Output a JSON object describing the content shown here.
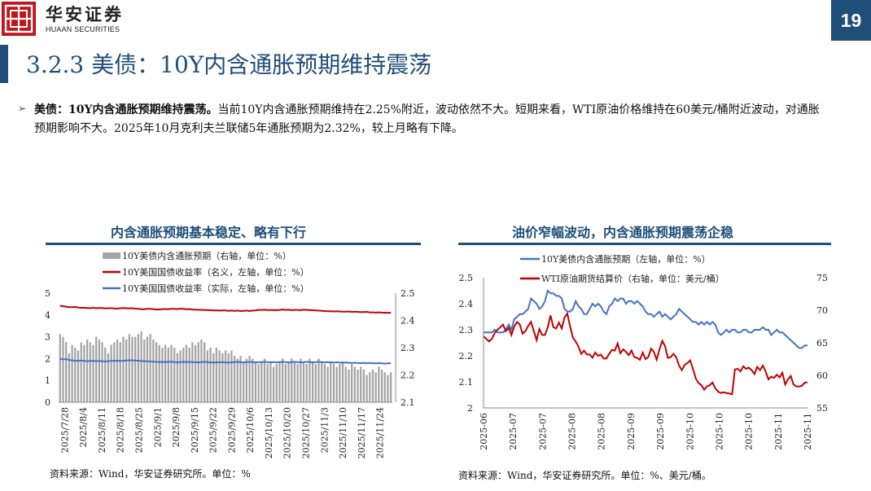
{
  "header": {
    "brand_cn": "华安证券",
    "brand_en": "HUAAN SECURITIES",
    "page_number": "19",
    "colors": {
      "brand_red": "#c0151c",
      "navy": "#1f4e79"
    }
  },
  "title": "3.2.3 美债：10Y内含通胀预期维持震荡",
  "bullet": {
    "lead": "美债：10Y内含通胀预期维持震荡。",
    "body": "当前10Y内含通胀预期维持在2.25%附近，波动依然不大。短期来看，WTI原油价格维持在60美元/桶附近波动，对通胀预期影响不大。2025年10月克利夫兰联储5年通胀预期为2.32%，较上月略有下降。"
  },
  "chart_data": [
    {
      "type": "bar",
      "title": "内含通胀预期基本稳定、略有下行",
      "source": "资料来源：Wind，华安证券研究所。单位：%",
      "legend": [
        {
          "name": "10Y美债内含通胀预期（右轴，单位：%）",
          "color": "#a6a6a6",
          "kind": "bar"
        },
        {
          "name": "10Y美国国债收益率（名义，左轴，单位：%）",
          "color": "#c00000",
          "kind": "line"
        },
        {
          "name": "10Y美国国债收益率（实际，左轴，单位：%）",
          "color": "#4472c4",
          "kind": "line"
        }
      ],
      "x_tick_labels": [
        "2025/7/28",
        "2025/8/4",
        "2025/8/11",
        "2025/8/18",
        "2025/8/25",
        "2025/9/1",
        "2025/9/8",
        "2025/9/15",
        "2025/9/22",
        "2025/9/29",
        "2025/10/6",
        "2025/10/13",
        "2025/10/20",
        "2025/10/27",
        "2025/11/3",
        "2025/11/10",
        "2025/11/17",
        "2025/11/24"
      ],
      "left_axis": {
        "ylim": [
          0,
          5
        ],
        "ticks": [
          "0",
          "1",
          "2",
          "3",
          "4",
          "5"
        ]
      },
      "right_axis": {
        "ylim": [
          2.1,
          2.5
        ],
        "ticks": [
          "2.1",
          "2.2",
          "2.3",
          "2.4",
          "2.5"
        ]
      },
      "series": [
        {
          "name": "10Y美债内含通胀预期（右轴，单位：%）",
          "axis": "right",
          "values": [
            2.35,
            2.34,
            2.32,
            2.28,
            2.31,
            2.3,
            2.29,
            2.32,
            2.31,
            2.33,
            2.32,
            2.31,
            2.34,
            2.33,
            2.32,
            2.3,
            2.28,
            2.31,
            2.32,
            2.33,
            2.32,
            2.34,
            2.33,
            2.35,
            2.34,
            2.34,
            2.35,
            2.36,
            2.33,
            2.34,
            2.35,
            2.33,
            2.32,
            2.31,
            2.3,
            2.31,
            2.3,
            2.31,
            2.3,
            2.28,
            2.29,
            2.3,
            2.31,
            2.3,
            2.32,
            2.31,
            2.32,
            2.33,
            2.32,
            2.29,
            2.3,
            2.28,
            2.3,
            2.29,
            2.28,
            2.29,
            2.28,
            2.29,
            2.27,
            2.26,
            2.27,
            2.25,
            2.26,
            2.27,
            2.26,
            2.25,
            2.24,
            2.25,
            2.26,
            2.24,
            2.25,
            2.23,
            2.24,
            2.25,
            2.26,
            2.24,
            2.25,
            2.26,
            2.25,
            2.24,
            2.26,
            2.25,
            2.24,
            2.26,
            2.25,
            2.24,
            2.26,
            2.25,
            2.24,
            2.23,
            2.25,
            2.24,
            2.23,
            2.24,
            2.25,
            2.23,
            2.22,
            2.24,
            2.23,
            2.22,
            2.23,
            2.22,
            2.2,
            2.21,
            2.22,
            2.21,
            2.23,
            2.22,
            2.21,
            2.2,
            2.21
          ]
        },
        {
          "name": "10Y美国国债收益率（名义，左轴，单位：%）",
          "axis": "left",
          "values": [
            4.42,
            4.4,
            4.38,
            4.36,
            4.36,
            4.37,
            4.34,
            4.33,
            4.33,
            4.32,
            4.31,
            4.33,
            4.31,
            4.32,
            4.32,
            4.3,
            4.31,
            4.31,
            4.3,
            4.29,
            4.31,
            4.32,
            4.31,
            4.3,
            4.31,
            4.29,
            4.28,
            4.26,
            4.26,
            4.28,
            4.28,
            4.27,
            4.25,
            4.25,
            4.27,
            4.27,
            4.26,
            4.28,
            4.28,
            4.27,
            4.29,
            4.28,
            4.26,
            4.27,
            4.25,
            4.24,
            4.24,
            4.23,
            4.23,
            4.22,
            4.22,
            4.21,
            4.21,
            4.2,
            4.21,
            4.21,
            4.19,
            4.2,
            4.19,
            4.2,
            4.18,
            4.19,
            4.2,
            4.18,
            4.2,
            4.21,
            4.23,
            4.23,
            4.24,
            4.22,
            4.23,
            4.22,
            4.22,
            4.23,
            4.25,
            4.23,
            4.24,
            4.22,
            4.23,
            4.23,
            4.22,
            4.24,
            4.23,
            4.22,
            4.22,
            4.21,
            4.2,
            4.19,
            4.18,
            4.17,
            4.17,
            4.16,
            4.17,
            4.16,
            4.15,
            4.15,
            4.16,
            4.14,
            4.15,
            4.14,
            4.13,
            4.13,
            4.14,
            4.12,
            4.12,
            4.11,
            4.12,
            4.11,
            4.1,
            4.1,
            4.1
          ]
        },
        {
          "name": "10Y美国国债收益率（实际，左轴，单位：%）",
          "axis": "left",
          "values": [
            2.0,
            1.96,
            1.98,
            1.94,
            1.92,
            1.9,
            1.9,
            1.91,
            1.89,
            1.88,
            1.89,
            1.9,
            1.88,
            1.89,
            1.88,
            1.87,
            1.88,
            1.89,
            1.9,
            1.9,
            1.89,
            1.9,
            1.91,
            1.92,
            1.92,
            1.91,
            1.9,
            1.89,
            1.88,
            1.88,
            1.87,
            1.86,
            1.85,
            1.84,
            1.85,
            1.84,
            1.85,
            1.86,
            1.84,
            1.83,
            1.84,
            1.85,
            1.84,
            1.85,
            1.84,
            1.83,
            1.83,
            1.84,
            1.85,
            1.84,
            1.83,
            1.82,
            1.83,
            1.83,
            1.84,
            1.83,
            1.82,
            1.83,
            1.84,
            1.85,
            1.84,
            1.83,
            1.84,
            1.85,
            1.84,
            1.83,
            1.84,
            1.84,
            1.85,
            1.84,
            1.83,
            1.84,
            1.83,
            1.84,
            1.85,
            1.84,
            1.83,
            1.84,
            1.85,
            1.84,
            1.83,
            1.84,
            1.85,
            1.84,
            1.83,
            1.84,
            1.85,
            1.84,
            1.83,
            1.84,
            1.83,
            1.82,
            1.83,
            1.82,
            1.81,
            1.82,
            1.81,
            1.8,
            1.81,
            1.8,
            1.79,
            1.8,
            1.79,
            1.8,
            1.79,
            1.78,
            1.79,
            1.78,
            1.77,
            1.78,
            1.79
          ]
        }
      ]
    },
    {
      "type": "line",
      "title": "油价窄幅波动，内含通胀预期震荡企稳",
      "source": "资料来源：Wind，华安证券研究所。单位：%、美元/桶。",
      "legend": [
        {
          "name": "10Y美债内含通胀预期（左轴，单位：%）",
          "color": "#4472c4"
        },
        {
          "name": "WTI原油期货结算价（右轴，单位：美元/桶）",
          "color": "#c00000"
        }
      ],
      "x_tick_labels": [
        "2025-06",
        "2025-07",
        "2025-07",
        "2025-08",
        "2025-08",
        "2025-09",
        "2025-09",
        "2025-10",
        "2025-10",
        "2025-10",
        "2025-11",
        "2025-11"
      ],
      "left_axis": {
        "ylim": [
          2.0,
          2.5
        ],
        "ticks": [
          "2",
          "2.1",
          "2.2",
          "2.3",
          "2.4",
          "2.5"
        ]
      },
      "right_axis": {
        "ylim": [
          55,
          75
        ],
        "ticks": [
          "55",
          "60",
          "65",
          "70",
          "75"
        ]
      },
      "series": [
        {
          "name": "10Y美债内含通胀预期（左轴，单位：%）",
          "axis": "left",
          "values": [
            2.29,
            2.29,
            2.29,
            2.29,
            2.3,
            2.29,
            2.29,
            2.29,
            2.3,
            2.32,
            2.3,
            2.34,
            2.35,
            2.36,
            2.36,
            2.37,
            2.38,
            2.42,
            2.41,
            2.4,
            2.38,
            2.39,
            2.41,
            2.45,
            2.44,
            2.44,
            2.43,
            2.43,
            2.42,
            2.38,
            2.37,
            2.37,
            2.38,
            2.41,
            2.39,
            2.38,
            2.36,
            2.36,
            2.38,
            2.4,
            2.39,
            2.4,
            2.39,
            2.37,
            2.36,
            2.39,
            2.4,
            2.42,
            2.41,
            2.42,
            2.42,
            2.4,
            2.41,
            2.41,
            2.4,
            2.41,
            2.4,
            2.39,
            2.37,
            2.36,
            2.36,
            2.35,
            2.36,
            2.37,
            2.35,
            2.36,
            2.35,
            2.34,
            2.35,
            2.36,
            2.38,
            2.37,
            2.36,
            2.35,
            2.34,
            2.33,
            2.33,
            2.32,
            2.33,
            2.32,
            2.33,
            2.32,
            2.33,
            2.32,
            2.29,
            2.28,
            2.29,
            2.3,
            2.29,
            2.3,
            2.3,
            2.29,
            2.29,
            2.3,
            2.3,
            2.29,
            2.29,
            2.3,
            2.3,
            2.3,
            2.31,
            2.3,
            2.3,
            2.28,
            2.29,
            2.3,
            2.29,
            2.29,
            2.28,
            2.27,
            2.26,
            2.25,
            2.24,
            2.23,
            2.23,
            2.24,
            2.24
          ]
        },
        {
          "name": "WTI原油期货结算价（右轴，单位：美元/桶）",
          "axis": "right",
          "values": [
            66.0,
            65.6,
            65.2,
            65.6,
            66.5,
            67.0,
            67.4,
            67.8,
            66.8,
            67.3,
            66.2,
            67.5,
            68.2,
            67.8,
            66.4,
            66.8,
            67.6,
            68.2,
            66.8,
            65.4,
            67.1,
            66.2,
            66.2,
            67.4,
            69.2,
            67.4,
            67.2,
            68.1,
            67.2,
            68.9,
            69.5,
            67.5,
            65.8,
            65.2,
            64.4,
            63.3,
            63.8,
            63.2,
            63.2,
            62.7,
            63.5,
            63.0,
            63.2,
            62.6,
            62.6,
            63.3,
            63.9,
            63.8,
            64.9,
            63.4,
            64.0,
            63.6,
            63.1,
            63.8,
            62.8,
            62.7,
            62.4,
            63.5,
            62.5,
            62.8,
            64.1,
            63.6,
            62.4,
            64.0,
            65.3,
            64.5,
            62.7,
            62.8,
            63.3,
            62.8,
            61.5,
            60.8,
            61.6,
            61.9,
            62.3,
            61.0,
            59.5,
            58.8,
            58.5,
            57.8,
            58.3,
            58.5,
            58.9,
            58.0,
            57.5,
            57.3,
            57.4,
            57.3,
            57.2,
            57.1,
            60.9,
            61.0,
            60.6,
            61.4,
            61.0,
            61.2,
            60.8,
            60.2,
            61.3,
            60.8,
            61.5,
            60.6,
            59.4,
            59.8,
            59.6,
            60.1,
            59.7,
            60.4,
            58.6,
            59.4,
            59.9,
            58.6,
            58.3,
            58.3,
            58.4,
            58.9,
            58.9
          ]
        }
      ]
    }
  ]
}
